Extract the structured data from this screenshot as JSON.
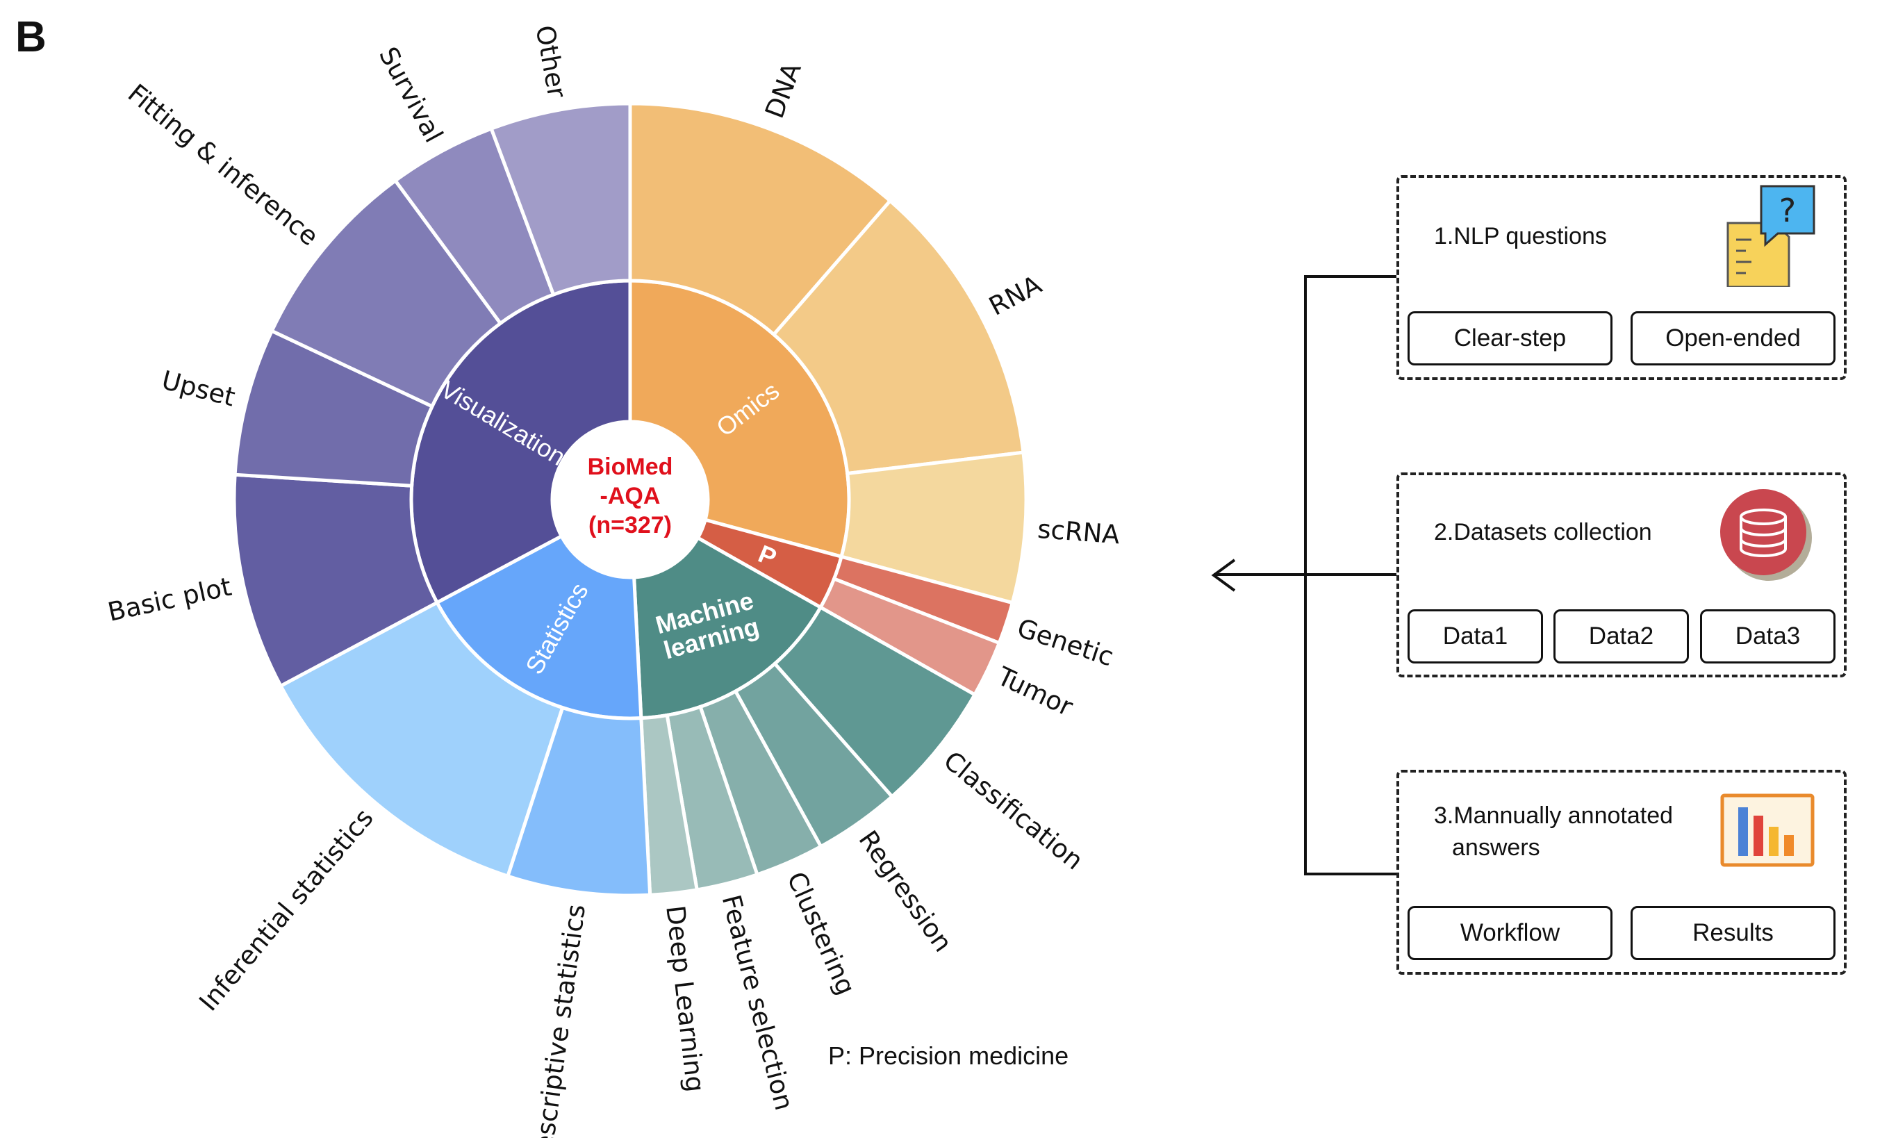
{
  "panel_label": "B",
  "chart_data": {
    "type": "sunburst",
    "center": {
      "lines": [
        "BioMed",
        "-AQA",
        "(n=327)"
      ]
    },
    "categories": [
      {
        "name": "Omics",
        "color": "#F0A95A",
        "text_color": "#ffffff",
        "weight": 29.2,
        "children": [
          {
            "name": "DNA",
            "weight": 11.4,
            "color": "#F2BE76"
          },
          {
            "name": "RNA",
            "weight": 11.7,
            "color": "#F3CA88"
          },
          {
            "name": "scRNA",
            "weight": 6.1,
            "color": "#F4D89E"
          }
        ]
      },
      {
        "name": "P",
        "color": "#D55E45",
        "text_color": "#ffffff",
        "weight": 4.0,
        "children": [
          {
            "name": "Genetic",
            "weight": 1.7,
            "color": "#DC7361"
          },
          {
            "name": "Tumor",
            "weight": 2.3,
            "color": "#E2968A"
          }
        ]
      },
      {
        "name": "Machine learning",
        "display_lines": [
          "Machine",
          "learning"
        ],
        "color": "#4F8C86",
        "text_color": "#ffffff",
        "weight": 16.0,
        "children": [
          {
            "name": "Classification",
            "weight": 5.3,
            "color": "#5F9893"
          },
          {
            "name": "Regression",
            "weight": 3.5,
            "color": "#72A39F"
          },
          {
            "name": "Clustering",
            "weight": 2.8,
            "color": "#86AFAB"
          },
          {
            "name": "Feature selection",
            "weight": 2.5,
            "color": "#98BBB7"
          },
          {
            "name": "Deep Learning",
            "weight": 1.9,
            "color": "#ABC7C3"
          }
        ]
      },
      {
        "name": "Statistics",
        "color": "#66A6FA",
        "text_color": "#ffffff",
        "weight": 18.0,
        "children": [
          {
            "name": "Descriptive statistics",
            "weight": 5.8,
            "color": "#84BDFB"
          },
          {
            "name": "Inferential statistics",
            "weight": 12.2,
            "color": "#9FD1FC"
          }
        ]
      },
      {
        "name": "Visualization",
        "color": "#544F97",
        "text_color": "#ffffff",
        "weight": 32.8,
        "children": [
          {
            "name": "Basic plot",
            "weight": 8.8,
            "color": "#625EA2"
          },
          {
            "name": "Upset",
            "weight": 6.0,
            "color": "#716DAB"
          },
          {
            "name": "Fitting & inference",
            "weight": 7.9,
            "color": "#807CB5"
          },
          {
            "name": "Survival",
            "weight": 4.4,
            "color": "#8F8ABE"
          },
          {
            "name": "Other",
            "weight": 5.7,
            "color": "#A19CC8"
          }
        ]
      }
    ]
  },
  "legend_note": "P:  Precision medicine",
  "workflow": {
    "cards": [
      {
        "title_lines": [
          "1.NLP questions"
        ],
        "icon": "chat-question-icon",
        "buttons": [
          "Clear-step",
          "Open-ended"
        ]
      },
      {
        "title_lines": [
          "2.Datasets collection"
        ],
        "icon": "database-icon",
        "buttons": [
          "Data1",
          "Data2",
          "Data3"
        ]
      },
      {
        "title_lines": [
          "3.Mannually annotated",
          "answers"
        ],
        "icon": "bar-chart-icon",
        "buttons": [
          "Workflow",
          "Results"
        ]
      }
    ]
  }
}
